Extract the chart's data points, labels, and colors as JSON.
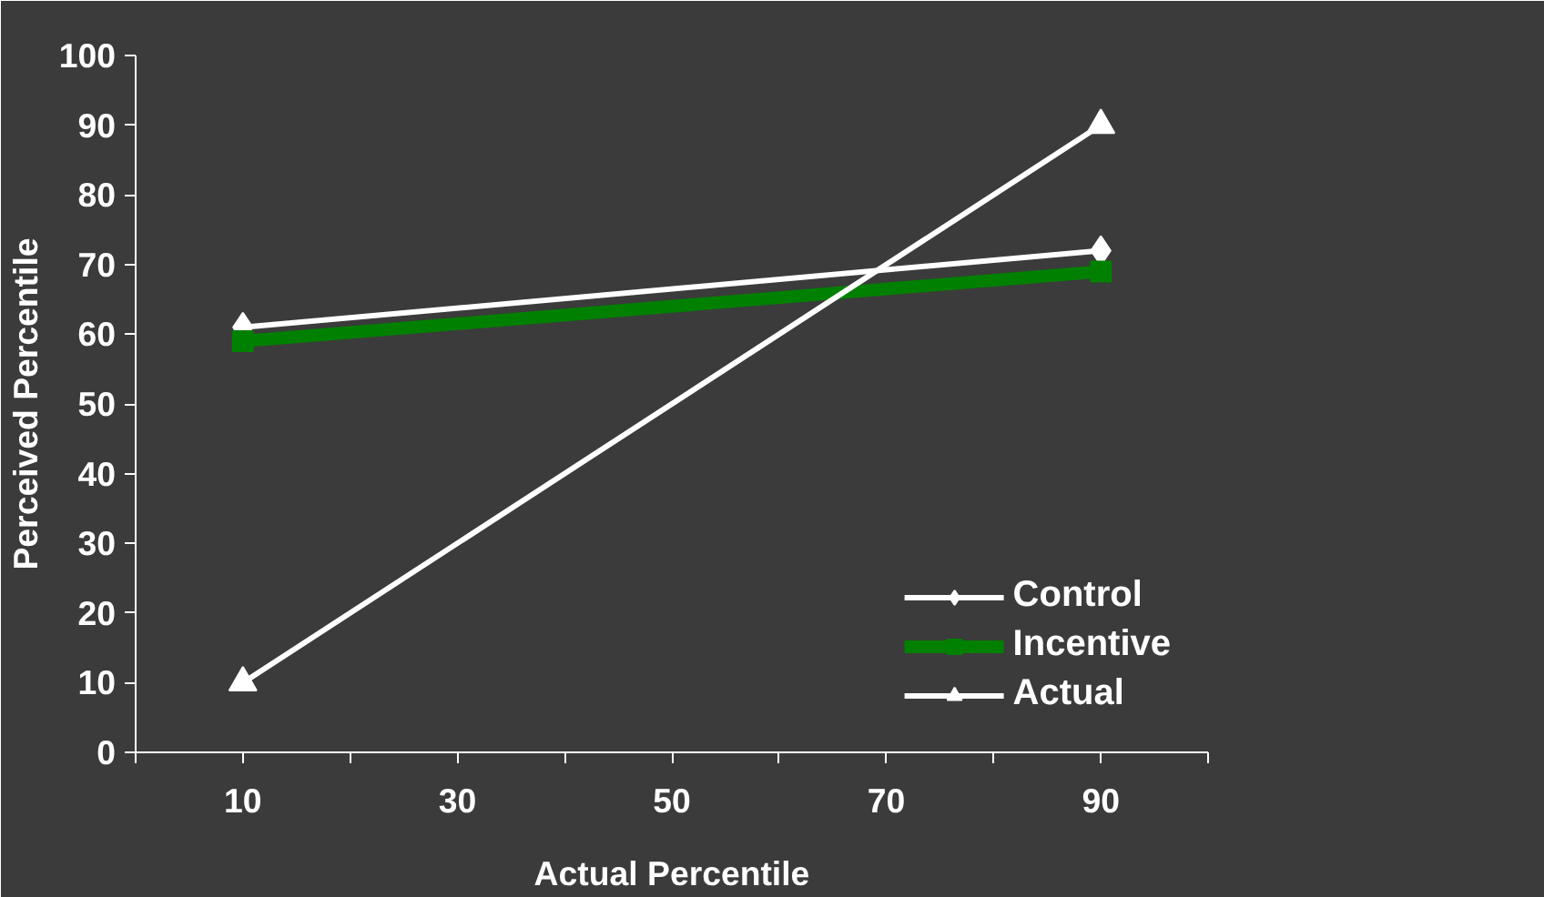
{
  "chart_data": {
    "type": "line",
    "xlabel": "Actual Percentile",
    "ylabel": "Perceived Percentile",
    "x": [
      10,
      90
    ],
    "xlim": [
      0,
      100
    ],
    "ylim": [
      0,
      100
    ],
    "xticks": [
      {
        "value": 0,
        "label": null
      },
      10,
      {
        "value": 20,
        "label": null
      },
      30,
      {
        "value": 40,
        "label": null
      },
      50,
      {
        "value": 60,
        "label": null
      },
      70,
      {
        "value": 80,
        "label": null
      },
      90,
      {
        "value": 100,
        "label": null
      }
    ],
    "yticks": [
      0,
      10,
      20,
      30,
      40,
      50,
      60,
      70,
      80,
      90,
      100
    ],
    "series": [
      {
        "name": "Control",
        "color": "#ffffff",
        "values": [
          61,
          72
        ],
        "marker": "diamond"
      },
      {
        "name": "Incentive",
        "color": "#008000",
        "values": [
          59,
          69
        ],
        "marker": "square"
      },
      {
        "name": "Actual",
        "color": "#ffffff",
        "values": [
          10,
          90
        ],
        "marker": "triangle"
      }
    ],
    "grid": false,
    "legend": "bottom right",
    "line_style": "solid"
  }
}
